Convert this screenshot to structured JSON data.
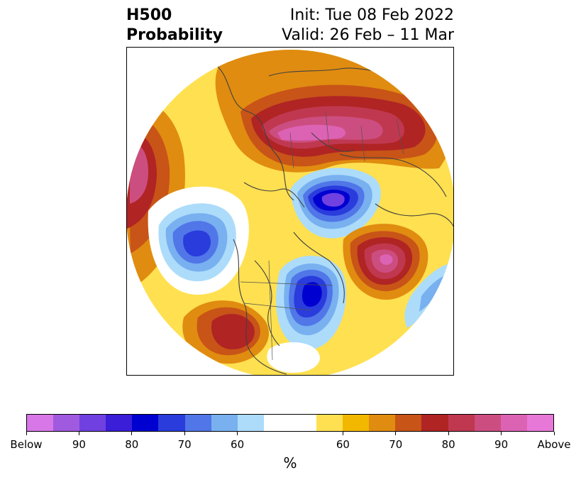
{
  "title": {
    "line1_left": "H500",
    "line2_left": "Probability",
    "line1_right": "Init: Tue 08 Feb 2022",
    "line2_right": "Valid: 26 Feb – 11 Mar"
  },
  "colorbar": {
    "unit": "%",
    "colors": [
      "#d877e8",
      "#a05ae0",
      "#7040e0",
      "#3a1ed8",
      "#0000d0",
      "#2a3cdc",
      "#5076e8",
      "#78b0f0",
      "#acdcfa",
      "#ffffff",
      "#ffffff",
      "#ffe050",
      "#f2b800",
      "#e08c10",
      "#c85418",
      "#b02424",
      "#c03850",
      "#cc4e80",
      "#dc62b4",
      "#e878d8"
    ],
    "tick_labels": [
      {
        "text": "Below",
        "index": 0
      },
      {
        "text": "90",
        "index": 2
      },
      {
        "text": "80",
        "index": 4
      },
      {
        "text": "70",
        "index": 6
      },
      {
        "text": "60",
        "index": 8
      },
      {
        "text": "60",
        "index": 12
      },
      {
        "text": "70",
        "index": 14
      },
      {
        "text": "80",
        "index": 16
      },
      {
        "text": "90",
        "index": 18
      },
      {
        "text": "Above",
        "index": 20
      }
    ]
  }
}
